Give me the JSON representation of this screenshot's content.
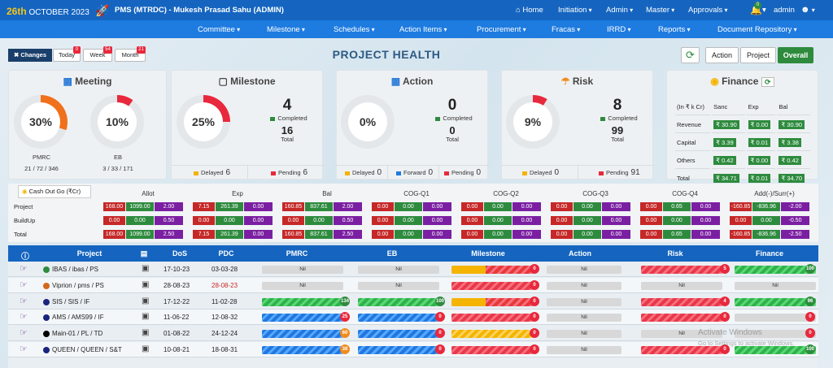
{
  "header": {
    "day": "26th",
    "month_year": "OCTOBER  2023",
    "app_title": "PMS (MTRDC) - Mukesh Prasad Sahu (ADMIN)",
    "nav": [
      "Home",
      "Initiation",
      "Admin",
      "Master",
      "Approvals"
    ],
    "notif_count": "0",
    "user": "admin"
  },
  "subnav": [
    "Committee",
    "Milestone",
    "Schedules",
    "Action Items",
    "Procurement",
    "Fracas",
    "IRRD",
    "Reports",
    "Document Repository"
  ],
  "changes": {
    "label": "Changes",
    "today": "Today",
    "today_count": "0",
    "week": "Week",
    "week_count": "54",
    "month": "Month",
    "month_count": "21"
  },
  "page_title": "PROJECT HEALTH",
  "view_buttons": [
    "Action",
    "Project",
    "Overall"
  ],
  "meeting": {
    "title": "Meeting",
    "pmrc_pct": "30%",
    "pmrc_pct_val": 30,
    "eb_pct": "10%",
    "eb_pct_val": 10,
    "pmrc_label": "PMRC",
    "pmrc_counts": "21 / 72 / 346",
    "eb_label": "EB",
    "eb_counts": "3 / 33 / 171"
  },
  "milestone": {
    "title": "Milestone",
    "pct": "25%",
    "pct_val": 25,
    "completed": "4",
    "completed_label": "Completed",
    "total": "16",
    "total_label": "Total",
    "delayed_label": "Delayed",
    "delayed": "6",
    "pending_label": "Pending",
    "pending": "6"
  },
  "action": {
    "title": "Action",
    "pct": "0%",
    "pct_val": 0,
    "completed": "0",
    "completed_label": "Completed",
    "total": "0",
    "total_label": "Total",
    "delayed_label": "Delayed",
    "delayed": "0",
    "forward_label": "Forward",
    "forward": "0",
    "pending_label": "Pending",
    "pending": "0"
  },
  "risk": {
    "title": "Risk",
    "pct": "9%",
    "pct_val": 9,
    "completed": "8",
    "completed_label": "Completed",
    "total": "99",
    "total_label": "Total",
    "delayed_label": "Delayed",
    "delayed": "0",
    "pending_label": "Pending",
    "pending": "91"
  },
  "finance": {
    "title": "Finance",
    "unit": "(In ₹ k Cr)",
    "cols": [
      "Sanc",
      "Exp",
      "Bal"
    ],
    "rows": [
      [
        "Revenue",
        "₹ 30.90",
        "₹ 0.00",
        "₹ 30.90"
      ],
      [
        "Capital",
        "₹ 3.39",
        "₹ 0.01",
        "₹ 3.38"
      ],
      [
        "Others",
        "₹ 0.42",
        "₹ 0.00",
        "₹ 0.42"
      ],
      [
        "Total",
        "₹ 34.71",
        "₹ 0.01",
        "₹ 34.70"
      ]
    ]
  },
  "cashout": {
    "label": "Cash Out Go (₹Cr)",
    "groups": [
      "Allot",
      "Exp",
      "Bal",
      "COG-Q1",
      "COG-Q2",
      "COG-Q3",
      "COG-Q4",
      "Add(-)/Surr(+)"
    ],
    "rows": [
      {
        "name": "Project",
        "vals": [
          [
            "168.00",
            "1099.00",
            "2.00"
          ],
          [
            "7.15",
            "261.39",
            "0.00"
          ],
          [
            "160.85",
            "837.61",
            "2.00"
          ],
          [
            "0.00",
            "0.00",
            "0.00"
          ],
          [
            "0.00",
            "0.00",
            "0.00"
          ],
          [
            "0.00",
            "0.00",
            "0.00"
          ],
          [
            "0.00",
            "0.65",
            "0.00"
          ],
          [
            "-160.85",
            "-836.96",
            "-2.00"
          ]
        ]
      },
      {
        "name": "BuildUp",
        "vals": [
          [
            "0.00",
            "0.00",
            "0.50"
          ],
          [
            "0.00",
            "0.00",
            "0.00"
          ],
          [
            "0.00",
            "0.00",
            "0.50"
          ],
          [
            "0.00",
            "0.00",
            "0.00"
          ],
          [
            "0.00",
            "0.00",
            "0.00"
          ],
          [
            "0.00",
            "0.00",
            "0.00"
          ],
          [
            "0.00",
            "0.00",
            "0.00"
          ],
          [
            "0.00",
            "0.00",
            "-0.50"
          ]
        ]
      },
      {
        "name": "Total",
        "vals": [
          [
            "168.00",
            "1099.00",
            "2.50"
          ],
          [
            "7.15",
            "261.39",
            "0.00"
          ],
          [
            "160.85",
            "837.61",
            "2.50"
          ],
          [
            "0.00",
            "0.00",
            "0.00"
          ],
          [
            "0.00",
            "0.00",
            "0.00"
          ],
          [
            "0.00",
            "0.00",
            "0.00"
          ],
          [
            "0.00",
            "0.65",
            "0.00"
          ],
          [
            "-160.85",
            "-836.96",
            "-2.50"
          ]
        ]
      }
    ]
  },
  "table": {
    "headers": [
      "Project",
      "DoS",
      "PDC",
      "PMRC",
      "EB",
      "Milestone",
      "Action",
      "Risk",
      "Finance"
    ],
    "rows": [
      {
        "name": "IBAS / ibas / PS",
        "dot": "#2e8b3e",
        "dos": "17-10-23",
        "pdc": "03-03-28",
        "pmrc": "Nil",
        "eb": "Nil",
        "ms_badge": "0",
        "action": "Nil",
        "risk_badge": "5",
        "fin_badge": "100"
      },
      {
        "name": "Viprion / pms / PS",
        "dot": "#d2691e",
        "dos": "28-08-23",
        "pdc": "28-08-23",
        "pmrc": "Nil",
        "eb": "Nil",
        "ms_badge": "0",
        "action": "Nil",
        "risk": "Nil",
        "fin": "Nil"
      },
      {
        "name": "SIS / SIS / IF",
        "dot": "#1a237e",
        "dos": "17-12-22",
        "pdc": "11-02-28",
        "pmrc_badge": "134",
        "eb_badge": "100",
        "ms_badge": "0",
        "action": "Nil",
        "risk_badge": "4",
        "fin_badge": "96"
      },
      {
        "name": "AMS / AMS99 / IF",
        "dot": "#1a237e",
        "dos": "11-06-22",
        "pdc": "12-08-32",
        "pmrc_badge": "25",
        "eb_badge": "0",
        "ms_badge": "0",
        "action": "Nil",
        "risk_badge": "0",
        "fin_badge": "0"
      },
      {
        "name": "Main-01 / PL / TD",
        "dot": "#000000",
        "dos": "01-08-22",
        "pdc": "24-12-24",
        "pmrc_badge": "60",
        "eb_badge": "0",
        "ms_badge": "0",
        "action": "Nil",
        "risk": "Nil",
        "fin_badge": "0"
      },
      {
        "name": "QUEEN / QUEEN / S&T",
        "dot": "#1a237e",
        "dos": "10-08-21",
        "pdc": "18-08-31",
        "pmrc_badge": "38",
        "eb_badge": "0",
        "ms_badge": "0",
        "action": "Nil",
        "risk_badge": "0",
        "fin_badge": "100"
      }
    ]
  },
  "watermark": [
    "Activate Windows",
    "Go to Settings to activate Windows."
  ]
}
